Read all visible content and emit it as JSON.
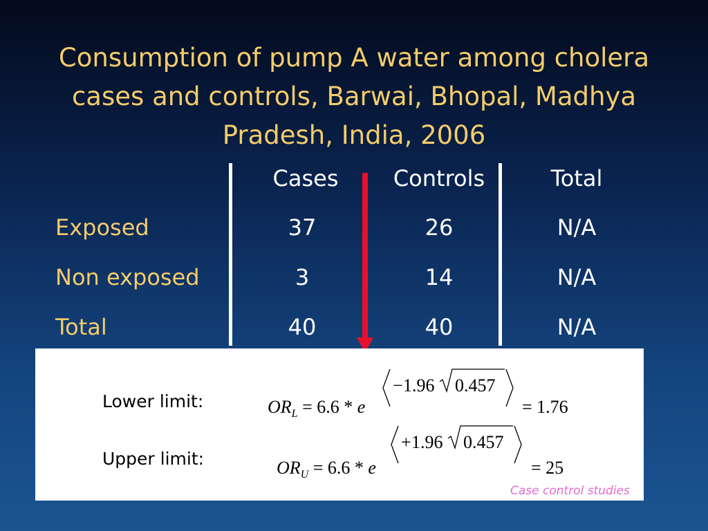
{
  "title": "Consumption of pump A water among cholera cases and controls, Barwai, Bhopal, Madhya Pradesh, India, 2006",
  "table": {
    "headers": [
      "Cases",
      "Controls",
      "Total"
    ],
    "rows": [
      {
        "label": "Exposed",
        "cases": "37",
        "controls": "26",
        "total": "N/A"
      },
      {
        "label": "Non exposed",
        "cases": "3",
        "controls": "14",
        "total": "N/A"
      },
      {
        "label": "Total",
        "cases": "40",
        "controls": "40",
        "total": "N/A"
      }
    ]
  },
  "formulas": {
    "lower": {
      "label": "Lower limit:",
      "or_symbol": "OR",
      "subscript": "L",
      "base": "= 6.6 * ",
      "e": "e",
      "sign": "−",
      "coef": "1.96",
      "radicand": "0.457",
      "result": "= 1.76"
    },
    "upper": {
      "label": "Upper limit:",
      "or_symbol": "OR",
      "subscript": "U",
      "base": "= 6.6 * ",
      "e": "e",
      "sign": "+",
      "coef": "1.96",
      "radicand": "0.457",
      "result": "= 25"
    }
  },
  "footnote": "Case control studies",
  "colors": {
    "title": "#f5cc6a",
    "arrow": "#e8102a",
    "footnote": "#e36ad0"
  }
}
